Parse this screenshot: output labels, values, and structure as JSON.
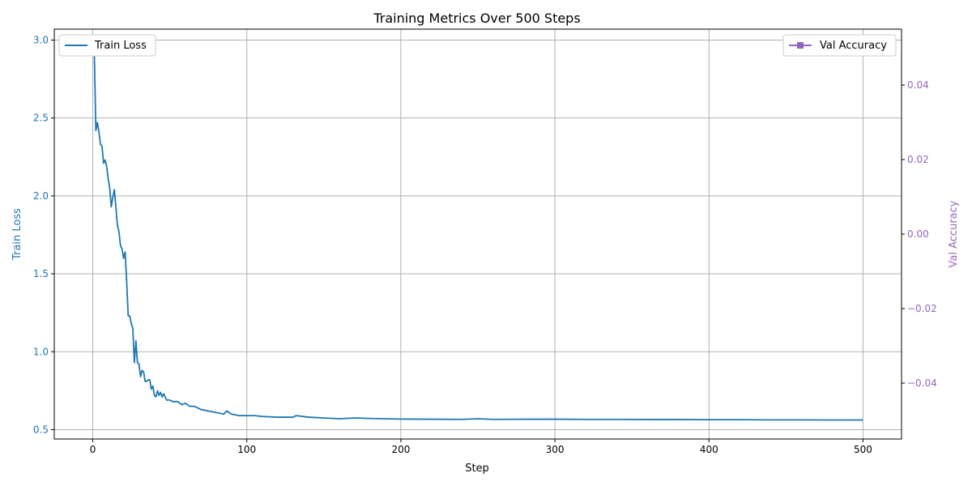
{
  "chart_data": {
    "type": "line",
    "title": "Training Metrics Over 500 Steps",
    "xlabel": "Step",
    "ylabel_left": "Train Loss",
    "ylabel_right": "Val Accuracy",
    "xlim": [
      -25,
      525
    ],
    "ylim_left": [
      0.44,
      3.07
    ],
    "ylim_right": [
      -0.055,
      0.055
    ],
    "x_ticks": [
      0,
      100,
      200,
      300,
      400,
      500
    ],
    "x_tick_labels": [
      "0",
      "100",
      "200",
      "300",
      "400",
      "500"
    ],
    "y_left_ticks": [
      0.5,
      1.0,
      1.5,
      2.0,
      2.5,
      3.0
    ],
    "y_left_tick_labels": [
      "0.5",
      "1.0",
      "1.5",
      "2.0",
      "2.5",
      "3.0"
    ],
    "y_right_ticks": [
      0.04,
      0.02,
      0.0,
      -0.02,
      -0.04
    ],
    "y_right_tick_labels": [
      "0.04",
      "0.02",
      "0.00",
      "−0.02",
      "−0.04"
    ],
    "grid": true,
    "series": [
      {
        "name": "Train Loss",
        "axis": "left",
        "color": "#1f77b4",
        "legend_position": "upper-left",
        "x": [
          1,
          2,
          3,
          4,
          5,
          6,
          7,
          8,
          9,
          10,
          11,
          12,
          13,
          14,
          15,
          16,
          17,
          18,
          19,
          20,
          21,
          22,
          23,
          24,
          25,
          26,
          27,
          28,
          29,
          30,
          31,
          32,
          33,
          34,
          35,
          36,
          37,
          38,
          39,
          40,
          41,
          42,
          43,
          44,
          45,
          46,
          48,
          50,
          52,
          55,
          58,
          60,
          63,
          66,
          70,
          75,
          80,
          85,
          87,
          90,
          95,
          100,
          105,
          110,
          120,
          130,
          132,
          140,
          150,
          160,
          170,
          180,
          190,
          200,
          220,
          240,
          250,
          260,
          280,
          300,
          320,
          340,
          360,
          380,
          400,
          420,
          440,
          460,
          480,
          500
        ],
        "values": [
          2.92,
          2.42,
          2.47,
          2.41,
          2.33,
          2.32,
          2.21,
          2.23,
          2.19,
          2.11,
          2.05,
          1.93,
          1.99,
          2.04,
          1.93,
          1.81,
          1.77,
          1.68,
          1.66,
          1.6,
          1.64,
          1.45,
          1.23,
          1.23,
          1.18,
          1.15,
          0.93,
          1.07,
          0.93,
          0.92,
          0.84,
          0.88,
          0.87,
          0.81,
          0.81,
          0.82,
          0.82,
          0.76,
          0.78,
          0.72,
          0.71,
          0.75,
          0.72,
          0.74,
          0.71,
          0.73,
          0.69,
          0.69,
          0.68,
          0.68,
          0.66,
          0.67,
          0.65,
          0.65,
          0.63,
          0.62,
          0.61,
          0.6,
          0.62,
          0.6,
          0.59,
          0.59,
          0.59,
          0.585,
          0.58,
          0.58,
          0.59,
          0.58,
          0.575,
          0.57,
          0.575,
          0.572,
          0.57,
          0.568,
          0.567,
          0.566,
          0.57,
          0.566,
          0.567,
          0.567,
          0.566,
          0.566,
          0.565,
          0.565,
          0.564,
          0.564,
          0.563,
          0.563,
          0.562,
          0.562
        ]
      },
      {
        "name": "Val Accuracy",
        "axis": "right",
        "color": "#9467bd",
        "marker": "square",
        "legend_position": "upper-right",
        "x": [],
        "values": []
      }
    ]
  }
}
